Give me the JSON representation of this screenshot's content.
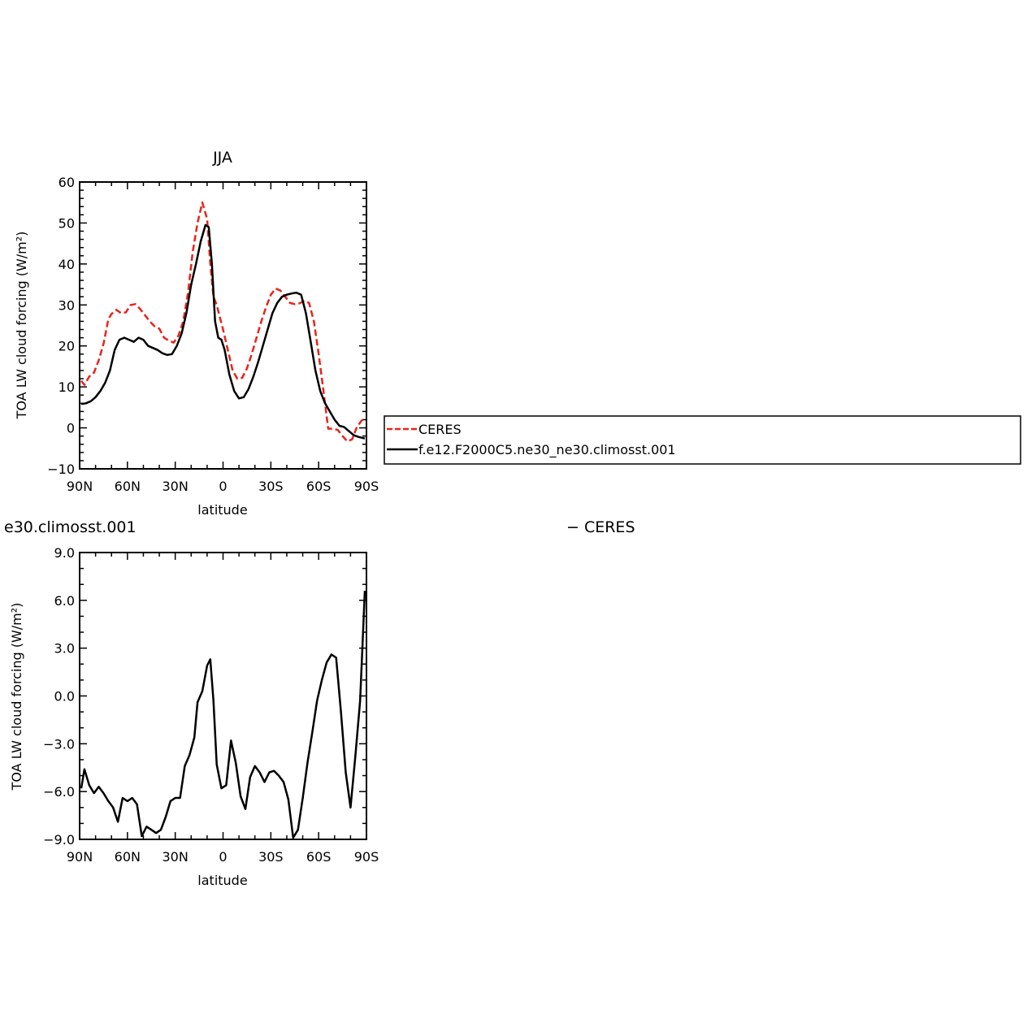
{
  "chart_data": [
    {
      "type": "line",
      "title": "JJA",
      "xlabel": "latitude",
      "ylabel": "TOA LW cloud forcing (W/m²)",
      "xlim": [
        90,
        -90
      ],
      "ylim": [
        -10,
        60
      ],
      "xticks": [
        90,
        60,
        30,
        0,
        -30,
        -60,
        -90
      ],
      "xtick_labels": [
        "90N",
        "60N",
        "30N",
        "0",
        "30S",
        "60S",
        "90S"
      ],
      "yticks": [
        -10,
        0,
        10,
        20,
        30,
        40,
        50,
        60
      ],
      "ytick_labels": [
        "−10",
        "0",
        "10",
        "20",
        "30",
        "40",
        "50",
        "60"
      ],
      "series": [
        {
          "name": "CERES",
          "color": "#e8241c",
          "dash": "dashed",
          "x": [
            89,
            87,
            84,
            81,
            78,
            75,
            72,
            70,
            67,
            64,
            61,
            58,
            55,
            52,
            49,
            46,
            43,
            40,
            37,
            34,
            31,
            28,
            25,
            22,
            19,
            16,
            13,
            10,
            8,
            6,
            4,
            2,
            0,
            -3,
            -6,
            -9,
            -12,
            -15,
            -18,
            -21,
            -24,
            -27,
            -30,
            -33,
            -36,
            -39,
            -42,
            -45,
            -48,
            -51,
            -54,
            -57,
            -60,
            -63,
            -66,
            -69,
            -72,
            -75,
            -78,
            -81,
            -84,
            -87,
            -89
          ],
          "y": [
            11.5,
            10.5,
            12.5,
            13.5,
            16.5,
            20.5,
            26.5,
            27.8,
            28.8,
            28.0,
            28.2,
            30.0,
            30.2,
            29.0,
            27.5,
            26.0,
            24.8,
            24.2,
            22.0,
            21.3,
            20.8,
            22.5,
            26.0,
            33.0,
            43.0,
            50.0,
            55.0,
            51.0,
            40.0,
            32.0,
            30.0,
            27.0,
            24.0,
            19.0,
            14.0,
            12.0,
            12.2,
            14.5,
            18.0,
            22.0,
            26.0,
            29.5,
            32.5,
            34.0,
            33.5,
            32.0,
            30.5,
            30.2,
            30.4,
            31.0,
            30.5,
            26.0,
            18.0,
            9.0,
            -0.2,
            -0.2,
            -0.5,
            -2.0,
            -3.3,
            -2.8,
            0.2,
            1.8,
            2.3
          ]
        },
        {
          "name": "f.e12.F2000C5.ne30_ne30.climosst.001",
          "color": "#000000",
          "dash": "solid",
          "x": [
            89,
            86,
            83,
            80,
            77,
            74,
            71,
            68,
            65,
            62,
            59,
            56,
            53,
            50,
            47,
            44,
            41,
            38,
            35,
            32,
            29,
            26,
            23,
            20,
            17,
            14,
            11,
            9,
            7,
            5,
            3,
            1,
            -1,
            -4,
            -7,
            -10,
            -13,
            -16,
            -19,
            -22,
            -25,
            -28,
            -31,
            -34,
            -37,
            -40,
            -43,
            -46,
            -49,
            -52,
            -55,
            -58,
            -61,
            -64,
            -67,
            -70,
            -73,
            -76,
            -79,
            -82,
            -85,
            -88,
            -89
          ],
          "y": [
            5.8,
            6.0,
            6.5,
            7.5,
            9.0,
            11.0,
            14.0,
            19.0,
            21.5,
            22.0,
            21.5,
            21.0,
            22.0,
            21.5,
            20.0,
            19.5,
            19.0,
            18.2,
            17.8,
            18.0,
            20.0,
            23.0,
            28.0,
            35.0,
            40.0,
            45.5,
            49.5,
            49.0,
            40.0,
            26.0,
            22.0,
            21.5,
            19.0,
            13.0,
            9.0,
            7.2,
            7.5,
            9.5,
            12.5,
            16.0,
            20.0,
            24.0,
            28.0,
            30.5,
            32.0,
            32.5,
            32.8,
            33.0,
            32.5,
            28.0,
            21.0,
            14.0,
            9.0,
            6.0,
            4.0,
            2.0,
            0.5,
            0.2,
            -0.8,
            -1.8,
            -2.2,
            -2.5,
            -2.6
          ]
        }
      ],
      "legend": "right"
    },
    {
      "type": "line",
      "title": "e30.climosst.001",
      "title_right": "− CERES",
      "xlabel": "latitude",
      "ylabel": "TOA LW cloud forcing (W/m²)",
      "xlim": [
        90,
        -90
      ],
      "ylim": [
        -9,
        9
      ],
      "xticks": [
        90,
        60,
        30,
        0,
        -30,
        -60,
        -90
      ],
      "xtick_labels": [
        "90N",
        "60N",
        "30N",
        "0",
        "30S",
        "60S",
        "90S"
      ],
      "yticks": [
        -9,
        -6,
        -3,
        0,
        3,
        6,
        9
      ],
      "ytick_labels": [
        "−9.0",
        "−6.0",
        "−3.0",
        "0.0",
        "3.0",
        "6.0",
        "9.0"
      ],
      "series": [
        {
          "color": "#000000",
          "dash": "solid",
          "x": [
            89,
            87,
            84,
            81,
            78,
            75,
            72,
            69,
            66,
            63,
            60,
            57,
            54,
            51,
            48,
            45,
            42,
            39,
            36,
            33,
            30,
            27,
            24,
            21,
            18,
            16,
            13,
            10,
            8,
            6,
            4,
            1,
            -2,
            -5,
            -8,
            -11,
            -14,
            -17,
            -20,
            -23,
            -26,
            -29,
            -32,
            -35,
            -38,
            -41,
            -44,
            -47,
            -50,
            -53,
            -56,
            -59,
            -62,
            -65,
            -68,
            -71,
            -74,
            -77,
            -80,
            -83,
            -86,
            -89
          ],
          "y": [
            -5.8,
            -4.6,
            -5.6,
            -6.1,
            -5.7,
            -6.1,
            -6.6,
            -7.0,
            -7.9,
            -6.4,
            -6.6,
            -6.4,
            -6.8,
            -8.8,
            -8.2,
            -8.4,
            -8.6,
            -8.4,
            -7.6,
            -6.6,
            -6.4,
            -6.4,
            -4.4,
            -3.7,
            -2.6,
            -0.4,
            0.3,
            1.9,
            2.3,
            -0.3,
            -4.3,
            -5.8,
            -5.6,
            -2.8,
            -4.2,
            -6.3,
            -7.1,
            -5.1,
            -4.4,
            -4.8,
            -5.4,
            -4.8,
            -4.7,
            -5.0,
            -5.4,
            -6.5,
            -8.9,
            -8.4,
            -6.4,
            -4.2,
            -2.3,
            -0.3,
            1.0,
            2.1,
            2.6,
            2.4,
            -1.0,
            -4.8,
            -7.0,
            -3.8,
            -0.3,
            6.6
          ]
        }
      ]
    }
  ]
}
